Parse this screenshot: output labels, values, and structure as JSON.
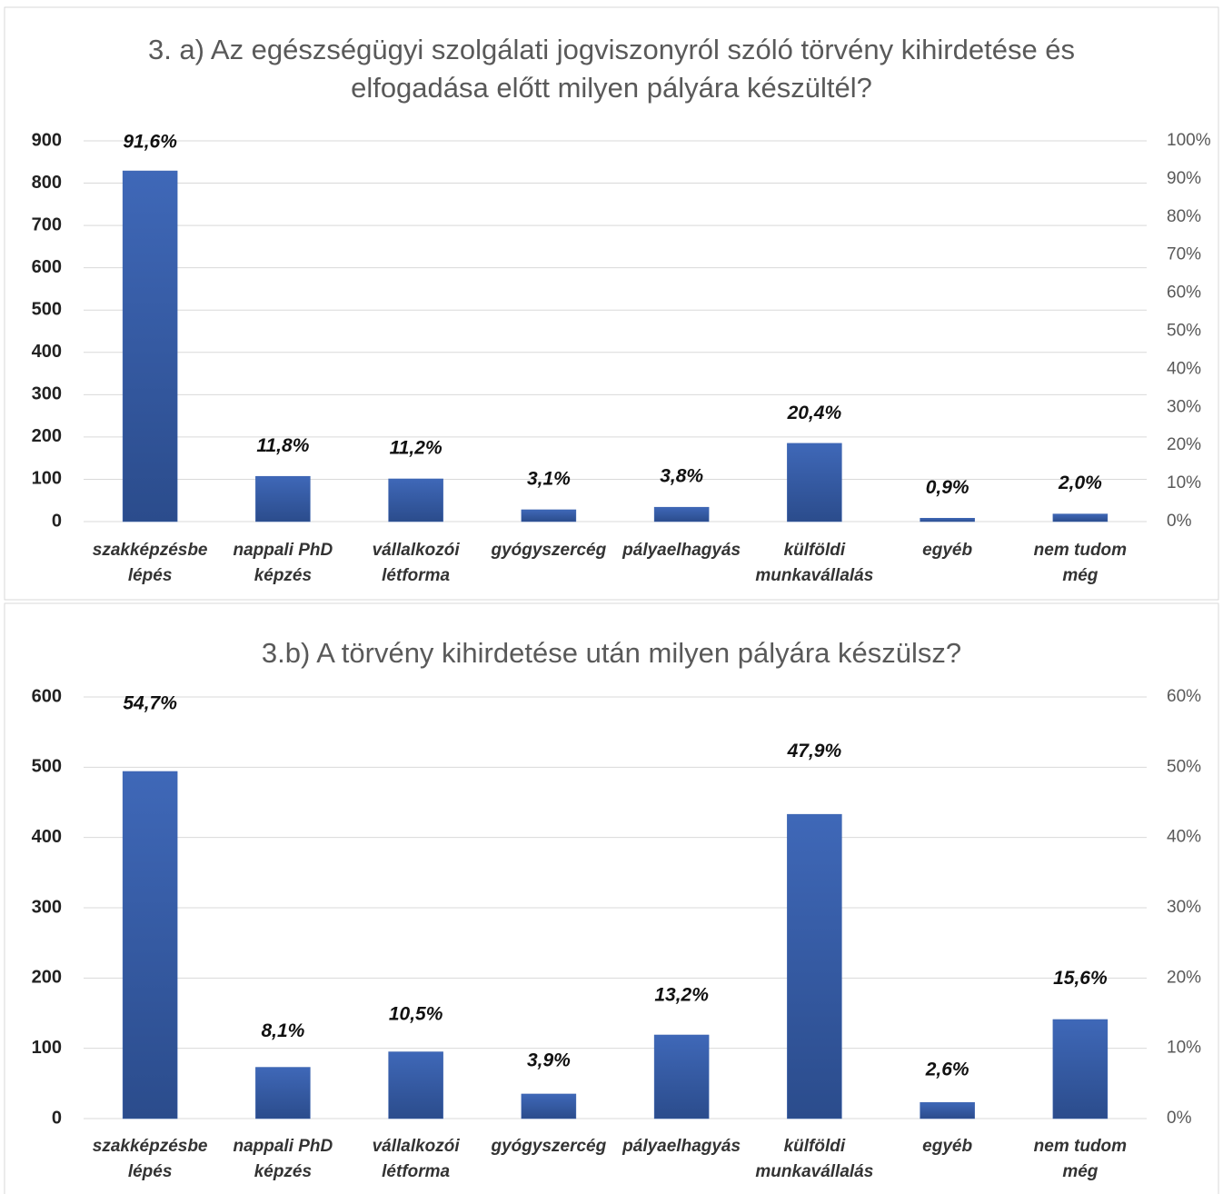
{
  "chart_data": [
    {
      "type": "bar",
      "title": "3. a) Az egészségügyi szolgálati jogviszonyról szóló törvény kihirdetése és elfogadása előtt milyen pályára készültél?",
      "categories": [
        [
          "szakképzésbe",
          "lépés"
        ],
        [
          "nappali PhD",
          "képzés"
        ],
        [
          "vállalkozói",
          "létforma"
        ],
        [
          "gyógyszercég"
        ],
        [
          "pályaelhagyás"
        ],
        [
          "külföldi",
          "munkavállalás"
        ],
        [
          "egyéb"
        ],
        [
          "nem tudom",
          "még"
        ]
      ],
      "series": [
        {
          "color": "#3a62ad",
          "values": [
            829,
            107,
            101,
            28,
            34,
            185,
            8,
            18
          ]
        },
        {
          "axis": "y2",
          "values": [
            91.6,
            11.8,
            11.2,
            3.1,
            3.8,
            20.4,
            0.9,
            2.0
          ],
          "value_labels": [
            "91,6%",
            "11,8%",
            "11,2%",
            "3,1%",
            "3,8%",
            "20,4%",
            "0,9%",
            "2,0%"
          ]
        }
      ],
      "ylim": [
        0,
        900
      ],
      "yticks": [
        0,
        100,
        200,
        300,
        400,
        500,
        600,
        700,
        800,
        900
      ],
      "y2lim": [
        0,
        100
      ],
      "y2ticks": [
        {
          "value": 0,
          "label": "0%"
        },
        {
          "value": 10,
          "label": "10%"
        },
        {
          "value": 20,
          "label": "20%"
        },
        {
          "value": 30,
          "label": "30%"
        },
        {
          "value": 40,
          "label": "40%"
        },
        {
          "value": 50,
          "label": "50%"
        },
        {
          "value": 60,
          "label": "60%"
        },
        {
          "value": 70,
          "label": "70%"
        },
        {
          "value": 80,
          "label": "80%"
        },
        {
          "value": 90,
          "label": "90%"
        },
        {
          "value": 100,
          "label": "100%"
        }
      ],
      "grid": true
    },
    {
      "type": "bar",
      "title": "3.b) A törvény kihirdetése után milyen pályára készülsz?",
      "categories": [
        [
          "szakképzésbe",
          "lépés"
        ],
        [
          "nappali PhD",
          "képzés"
        ],
        [
          "vállalkozói",
          "létforma"
        ],
        [
          "gyógyszercég"
        ],
        [
          "pályaelhagyás"
        ],
        [
          "külföldi",
          "munkavállalás"
        ],
        [
          "egyéb"
        ],
        [
          "nem tudom",
          "még"
        ]
      ],
      "series": [
        {
          "color": "#3a62ad",
          "values": [
            494,
            73,
            95,
            35,
            119,
            433,
            23,
            141
          ]
        },
        {
          "axis": "y2",
          "values": [
            54.7,
            8.1,
            10.5,
            3.9,
            13.2,
            47.9,
            2.6,
            15.6
          ],
          "value_labels": [
            "54,7%",
            "8,1%",
            "10,5%",
            "3,9%",
            "13,2%",
            "47,9%",
            "2,6%",
            "15,6%"
          ]
        }
      ],
      "ylim": [
        0,
        600
      ],
      "yticks": [
        0,
        100,
        200,
        300,
        400,
        500,
        600
      ],
      "y2lim": [
        0,
        60
      ],
      "y2ticks": [
        {
          "value": 0,
          "label": "0%"
        },
        {
          "value": 10,
          "label": "10%"
        },
        {
          "value": 20,
          "label": "20%"
        },
        {
          "value": 30,
          "label": "30%"
        },
        {
          "value": 40,
          "label": "40%"
        },
        {
          "value": 50,
          "label": "50%"
        },
        {
          "value": 60,
          "label": "60%"
        }
      ],
      "grid": true
    }
  ]
}
